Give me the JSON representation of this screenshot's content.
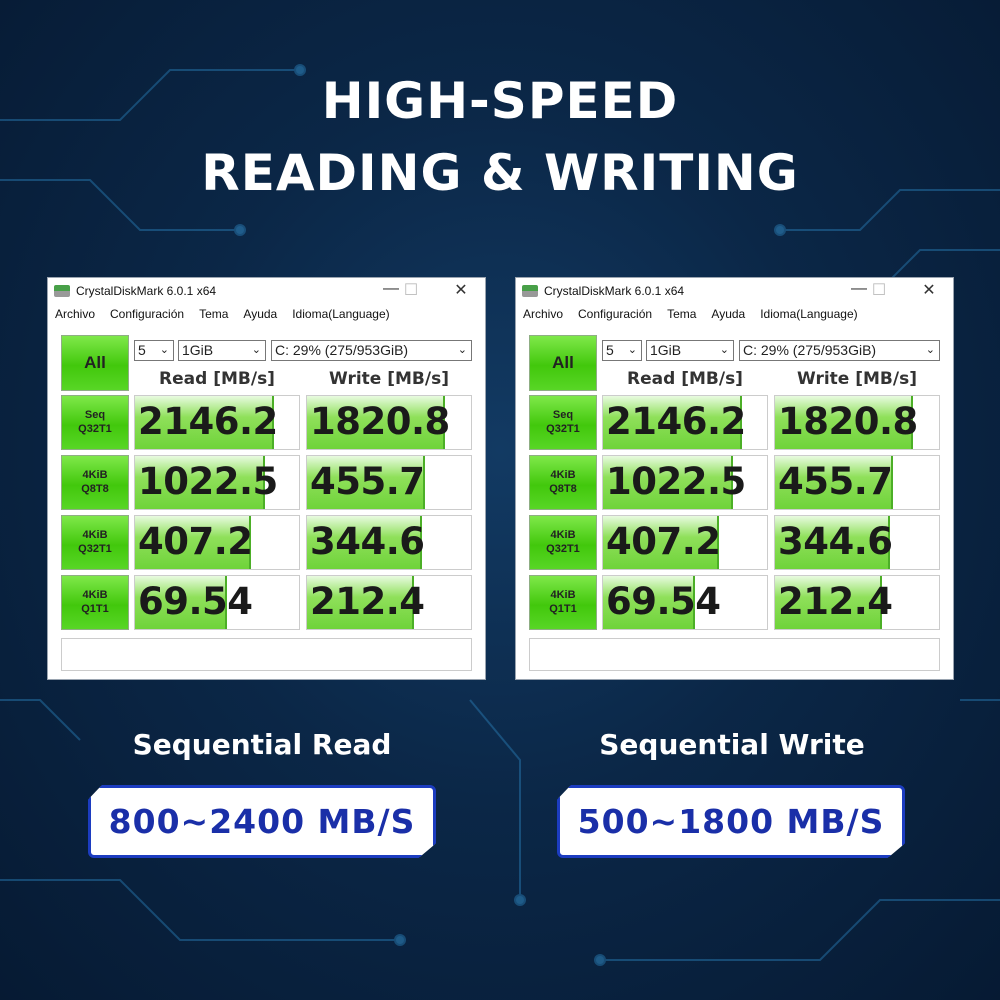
{
  "headline": {
    "line1": "HIGH-SPEED",
    "line2": "READING & WRITING"
  },
  "colors": {
    "background": "#0b2747",
    "bar_green": "#42c80c",
    "badge_text": "#1a2fa8"
  },
  "windows": [
    {
      "title": "CrystalDiskMark 6.0.1 x64",
      "menu": [
        "Archivo",
        "Configuración",
        "Tema",
        "Ayuda",
        "Idioma(Language)"
      ],
      "all_label": "All",
      "count": "5",
      "size": "1GiB",
      "drive": "C: 29% (275/953GiB)",
      "read_header": "Read [MB/s]",
      "write_header": "Write [MB/s]",
      "rows": [
        {
          "label1": "Seq",
          "label2": "Q32T1",
          "read": "2146.2",
          "write": "1820.8",
          "read_fill": 0.85,
          "write_fill": 0.84
        },
        {
          "label1": "4KiB",
          "label2": "Q8T8",
          "read": "1022.5",
          "write": "455.7",
          "read_fill": 0.79,
          "write_fill": 0.72
        },
        {
          "label1": "4KiB",
          "label2": "Q32T1",
          "read": "407.2",
          "write": "344.6",
          "read_fill": 0.71,
          "write_fill": 0.7
        },
        {
          "label1": "4KiB",
          "label2": "Q1T1",
          "read": "69.54",
          "write": "212.4",
          "read_fill": 0.56,
          "write_fill": 0.65
        }
      ]
    },
    {
      "title": "CrystalDiskMark 6.0.1 x64",
      "menu": [
        "Archivo",
        "Configuración",
        "Tema",
        "Ayuda",
        "Idioma(Language)"
      ],
      "all_label": "All",
      "count": "5",
      "size": "1GiB",
      "drive": "C: 29% (275/953GiB)",
      "read_header": "Read [MB/s]",
      "write_header": "Write [MB/s]",
      "rows": [
        {
          "label1": "Seq",
          "label2": "Q32T1",
          "read": "2146.2",
          "write": "1820.8",
          "read_fill": 0.85,
          "write_fill": 0.84
        },
        {
          "label1": "4KiB",
          "label2": "Q8T8",
          "read": "1022.5",
          "write": "455.7",
          "read_fill": 0.79,
          "write_fill": 0.72
        },
        {
          "label1": "4KiB",
          "label2": "Q32T1",
          "read": "407.2",
          "write": "344.6",
          "read_fill": 0.71,
          "write_fill": 0.7
        },
        {
          "label1": "4KiB",
          "label2": "Q1T1",
          "read": "69.54",
          "write": "212.4",
          "read_fill": 0.56,
          "write_fill": 0.65
        }
      ]
    }
  ],
  "specs": [
    {
      "label": "Sequential Read",
      "value": "800~2400 MB/S"
    },
    {
      "label": "Sequential Write",
      "value": "500~1800 MB/S"
    }
  ]
}
